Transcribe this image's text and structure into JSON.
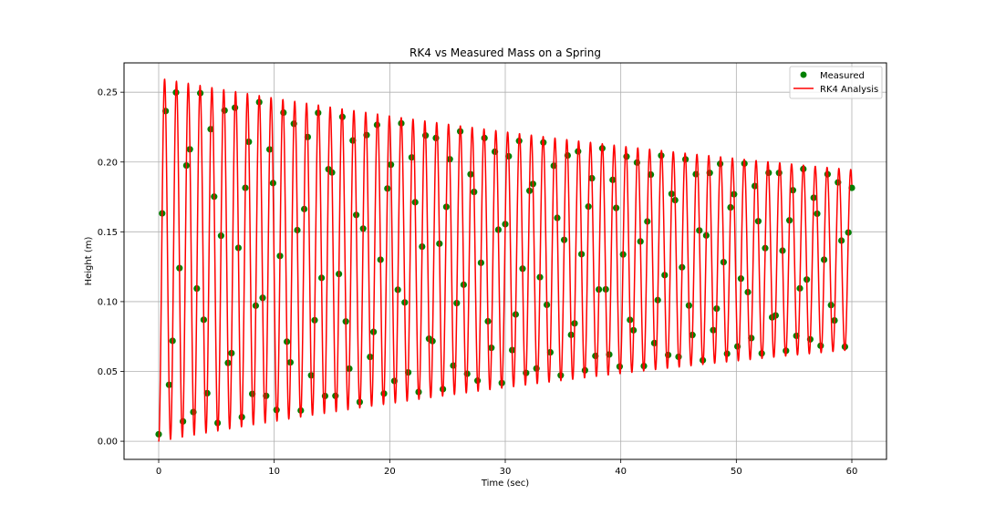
{
  "chart_data": {
    "type": "scatter",
    "title": "RK4 vs Measured Mass on a Spring",
    "xlabel": "Time (sec)",
    "ylabel": "Height (m)",
    "xlim": [
      -3,
      63
    ],
    "ylim": [
      -0.013,
      0.271
    ],
    "grid": true,
    "legend_position": "top-right",
    "x_ticks": [
      0,
      10,
      20,
      30,
      40,
      50,
      60
    ],
    "y_ticks": [
      0.0,
      0.05,
      0.1,
      0.15,
      0.2,
      0.25
    ],
    "x_tick_labels": [
      "0",
      "10",
      "20",
      "30",
      "40",
      "50",
      "60"
    ],
    "y_tick_labels": [
      "0.00",
      "0.05",
      "0.10",
      "0.15",
      "0.20",
      "0.25"
    ],
    "series": [
      {
        "name": "Measured",
        "kind": "scatter",
        "color": "#008000"
      },
      {
        "name": "RK4 Analysis",
        "kind": "line",
        "color": "#ff0000"
      }
    ]
  }
}
